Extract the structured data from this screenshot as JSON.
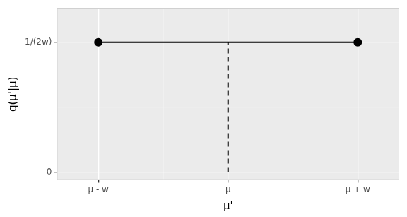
{
  "chart_data": {
    "type": "line",
    "x_label": "μ'",
    "y_label": "q(μ'|μ)",
    "series": [
      {
        "x": [
          -1,
          1
        ],
        "values": [
          0.5,
          0.5
        ],
        "color": "#000000",
        "marker": "circle",
        "line_style": "solid"
      },
      {
        "x": [
          0,
          0
        ],
        "values": [
          0,
          0.5
        ],
        "color": "#000000",
        "marker": "none",
        "line_style": "dashed"
      }
    ],
    "xlim": [
      -1.32,
      1.32
    ],
    "xticks": [
      {
        "value": -1,
        "label": "μ - w"
      },
      {
        "value": 0,
        "label": "μ"
      },
      {
        "value": 1,
        "label": "μ + w"
      }
    ],
    "ylim": [
      -0.03,
      0.63
    ],
    "yticks": [
      0,
      {
        "value": 0.5,
        "label": "1/(2w)"
      }
    ],
    "grid": true
  }
}
